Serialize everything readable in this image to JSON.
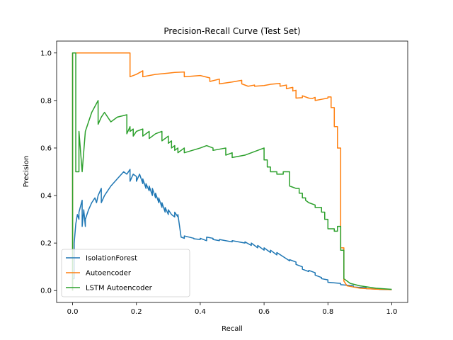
{
  "chart_data": {
    "type": "line",
    "title": "Precision-Recall Curve (Test Set)",
    "xlabel": "Recall",
    "ylabel": "Precision",
    "xlim": [
      -0.05,
      1.05
    ],
    "ylim": [
      -0.05,
      1.05
    ],
    "xticks": [
      0.0,
      0.2,
      0.4,
      0.6,
      0.8,
      1.0
    ],
    "yticks": [
      0.0,
      0.2,
      0.4,
      0.6,
      0.8,
      1.0
    ],
    "xtick_labels": [
      "0.0",
      "0.2",
      "0.4",
      "0.6",
      "0.8",
      "1.0"
    ],
    "ytick_labels": [
      "0.0",
      "0.2",
      "0.4",
      "0.6",
      "0.8",
      "1.0"
    ],
    "grid": false,
    "legend_position": "lower-left",
    "series": [
      {
        "name": "IsolationForest",
        "color": "#1f77b4",
        "x": [
          0.0,
          0.0,
          0.005,
          0.005,
          0.01,
          0.015,
          0.02,
          0.02,
          0.03,
          0.03,
          0.035,
          0.04,
          0.04,
          0.05,
          0.06,
          0.07,
          0.075,
          0.08,
          0.09,
          0.09,
          0.1,
          0.12,
          0.14,
          0.16,
          0.17,
          0.18,
          0.18,
          0.19,
          0.2,
          0.2,
          0.21,
          0.22,
          0.22,
          0.23,
          0.23,
          0.24,
          0.24,
          0.25,
          0.25,
          0.26,
          0.26,
          0.27,
          0.27,
          0.28,
          0.28,
          0.29,
          0.29,
          0.3,
          0.3,
          0.31,
          0.32,
          0.32,
          0.33,
          0.33,
          0.34,
          0.35,
          0.35,
          0.38,
          0.38,
          0.4,
          0.4,
          0.42,
          0.42,
          0.44,
          0.44,
          0.46,
          0.46,
          0.5,
          0.5,
          0.54,
          0.54,
          0.56,
          0.56,
          0.58,
          0.58,
          0.6,
          0.6,
          0.62,
          0.62,
          0.64,
          0.64,
          0.68,
          0.68,
          0.7,
          0.7,
          0.72,
          0.72,
          0.74,
          0.74,
          0.76,
          0.76,
          0.78,
          0.78,
          0.8,
          0.8,
          0.84,
          0.84,
          0.88,
          0.88,
          0.92,
          0.92,
          0.96,
          0.96,
          1.0
        ],
        "y": [
          0.0,
          0.05,
          0.05,
          0.2,
          0.28,
          0.32,
          0.3,
          0.33,
          0.38,
          0.27,
          0.34,
          0.27,
          0.3,
          0.34,
          0.37,
          0.39,
          0.37,
          0.4,
          0.43,
          0.37,
          0.4,
          0.44,
          0.47,
          0.5,
          0.49,
          0.51,
          0.46,
          0.49,
          0.48,
          0.46,
          0.49,
          0.45,
          0.47,
          0.43,
          0.45,
          0.42,
          0.44,
          0.4,
          0.43,
          0.39,
          0.41,
          0.37,
          0.39,
          0.35,
          0.37,
          0.33,
          0.35,
          0.32,
          0.34,
          0.32,
          0.31,
          0.33,
          0.31,
          0.32,
          0.225,
          0.22,
          0.23,
          0.22,
          0.218,
          0.215,
          0.22,
          0.21,
          0.225,
          0.22,
          0.215,
          0.21,
          0.215,
          0.205,
          0.21,
          0.2,
          0.205,
          0.19,
          0.2,
          0.18,
          0.19,
          0.17,
          0.18,
          0.16,
          0.17,
          0.15,
          0.16,
          0.125,
          0.13,
          0.12,
          0.11,
          0.1,
          0.09,
          0.08,
          0.085,
          0.075,
          0.065,
          0.055,
          0.05,
          0.045,
          0.035,
          0.03,
          0.025,
          0.02,
          0.015,
          0.012,
          0.008,
          0.006,
          0.005,
          0.004
        ]
      },
      {
        "name": "Autoencoder",
        "color": "#ff7f0e",
        "x": [
          0.0,
          0.0,
          0.18,
          0.18,
          0.2,
          0.22,
          0.22,
          0.26,
          0.3,
          0.32,
          0.35,
          0.35,
          0.4,
          0.43,
          0.43,
          0.46,
          0.46,
          0.5,
          0.53,
          0.53,
          0.55,
          0.57,
          0.57,
          0.6,
          0.62,
          0.65,
          0.65,
          0.67,
          0.67,
          0.69,
          0.69,
          0.7,
          0.7,
          0.72,
          0.72,
          0.74,
          0.75,
          0.76,
          0.76,
          0.78,
          0.8,
          0.8,
          0.81,
          0.81,
          0.82,
          0.82,
          0.83,
          0.83,
          0.84,
          0.84,
          0.85,
          0.85,
          0.86,
          0.88,
          0.9,
          0.95,
          1.0
        ],
        "y": [
          0.0,
          1.0,
          1.0,
          0.9,
          0.91,
          0.925,
          0.9,
          0.91,
          0.915,
          0.918,
          0.92,
          0.9,
          0.905,
          0.895,
          0.88,
          0.89,
          0.87,
          0.878,
          0.885,
          0.87,
          0.86,
          0.865,
          0.86,
          0.863,
          0.868,
          0.872,
          0.86,
          0.865,
          0.85,
          0.855,
          0.84,
          0.843,
          0.81,
          0.812,
          0.82,
          0.81,
          0.808,
          0.813,
          0.8,
          0.805,
          0.81,
          0.815,
          0.815,
          0.77,
          0.77,
          0.69,
          0.69,
          0.6,
          0.6,
          0.18,
          0.18,
          0.04,
          0.02,
          0.015,
          0.01,
          0.006,
          0.004
        ]
      },
      {
        "name": "LSTM Autoencoder",
        "color": "#2ca02c",
        "x": [
          0.0,
          0.0,
          0.01,
          0.01,
          0.02,
          0.02,
          0.03,
          0.04,
          0.06,
          0.08,
          0.08,
          0.09,
          0.1,
          0.12,
          0.14,
          0.17,
          0.17,
          0.18,
          0.18,
          0.19,
          0.19,
          0.2,
          0.22,
          0.22,
          0.24,
          0.24,
          0.26,
          0.28,
          0.28,
          0.3,
          0.3,
          0.31,
          0.31,
          0.32,
          0.32,
          0.33,
          0.33,
          0.34,
          0.35,
          0.35,
          0.4,
          0.42,
          0.44,
          0.44,
          0.48,
          0.48,
          0.5,
          0.5,
          0.54,
          0.56,
          0.6,
          0.6,
          0.61,
          0.61,
          0.62,
          0.62,
          0.64,
          0.64,
          0.66,
          0.66,
          0.68,
          0.68,
          0.7,
          0.71,
          0.71,
          0.72,
          0.72,
          0.73,
          0.73,
          0.74,
          0.76,
          0.76,
          0.78,
          0.78,
          0.79,
          0.79,
          0.8,
          0.8,
          0.82,
          0.82,
          0.83,
          0.83,
          0.84,
          0.84,
          0.85,
          0.85,
          0.87,
          0.9,
          0.95,
          1.0
        ],
        "y": [
          0.0,
          1.0,
          1.0,
          0.5,
          0.5,
          0.67,
          0.5,
          0.67,
          0.75,
          0.8,
          0.7,
          0.73,
          0.75,
          0.71,
          0.73,
          0.74,
          0.66,
          0.69,
          0.67,
          0.68,
          0.65,
          0.67,
          0.68,
          0.65,
          0.67,
          0.64,
          0.66,
          0.67,
          0.63,
          0.65,
          0.62,
          0.63,
          0.6,
          0.61,
          0.59,
          0.6,
          0.58,
          0.59,
          0.6,
          0.58,
          0.6,
          0.61,
          0.6,
          0.59,
          0.6,
          0.57,
          0.58,
          0.56,
          0.57,
          0.58,
          0.6,
          0.55,
          0.55,
          0.52,
          0.52,
          0.5,
          0.5,
          0.49,
          0.49,
          0.5,
          0.5,
          0.44,
          0.43,
          0.43,
          0.41,
          0.41,
          0.39,
          0.39,
          0.38,
          0.37,
          0.36,
          0.35,
          0.35,
          0.33,
          0.33,
          0.3,
          0.3,
          0.26,
          0.26,
          0.25,
          0.25,
          0.27,
          0.27,
          0.17,
          0.17,
          0.05,
          0.03,
          0.02,
          0.01,
          0.005
        ]
      }
    ]
  }
}
